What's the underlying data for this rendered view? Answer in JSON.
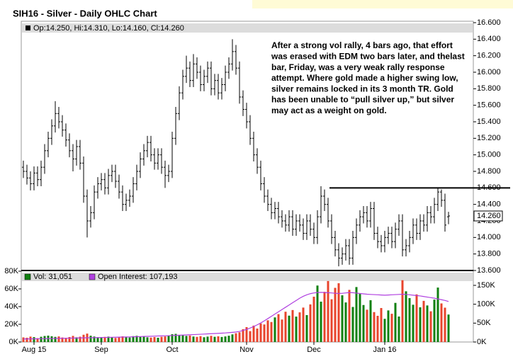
{
  "chart_data": [
    {
      "type": "ohlc",
      "title": "SIH16 - Silver - Daily OHLC Chart",
      "header": "Op:14.250, Hi:14.310, Lo:14.160, Cl:14.260",
      "annotation": [
        "After a strong vol rally, 4 bars ago, that effort",
        "was erased with EDM two bars later, and thelast",
        "bar, Friday, was a very weak rally response",
        "attempt.  Where gold made a higher swing low,",
        "silver remains locked in its 3 month TR.  Gold",
        "has been unable to “pull silver up,” but silver",
        "may act as a weight on gold."
      ],
      "categories": [
        null,
        null,
        null,
        "Aug 15",
        null,
        null,
        null,
        null,
        null,
        null,
        null,
        null,
        null,
        null,
        null,
        null,
        null,
        null,
        null,
        null,
        null,
        null,
        "Sep",
        null,
        null,
        null,
        null,
        null,
        null,
        null,
        null,
        null,
        null,
        null,
        null,
        null,
        null,
        null,
        null,
        null,
        null,
        null,
        "Oct",
        null,
        null,
        null,
        null,
        null,
        null,
        null,
        null,
        null,
        null,
        null,
        null,
        null,
        null,
        null,
        null,
        null,
        null,
        null,
        null,
        "Nov",
        null,
        null,
        null,
        null,
        null,
        null,
        null,
        null,
        null,
        null,
        null,
        null,
        null,
        null,
        null,
        null,
        null,
        null,
        "Dec",
        null,
        null,
        null,
        null,
        null,
        null,
        null,
        null,
        null,
        null,
        null,
        null,
        null,
        null,
        null,
        null,
        null,
        null,
        null,
        "Jan 16",
        null,
        null,
        null,
        null,
        null,
        null,
        null,
        null,
        null,
        null,
        null,
        null,
        null,
        null,
        null,
        null,
        null,
        null
      ],
      "open": [
        14.85,
        14.8,
        14.72,
        14.65,
        14.78,
        14.7,
        14.85,
        15.05,
        15.2,
        15.35,
        15.5,
        15.4,
        15.3,
        15.18,
        15.05,
        14.95,
        15.1,
        14.9,
        14.5,
        14.2,
        14.3,
        14.55,
        14.65,
        14.7,
        14.6,
        14.75,
        14.8,
        14.68,
        14.55,
        14.4,
        14.45,
        14.5,
        14.65,
        14.8,
        14.95,
        15.05,
        15.15,
        15.0,
        14.9,
        15.0,
        14.85,
        14.75,
        14.8,
        15.2,
        15.5,
        15.75,
        15.95,
        16.05,
        15.9,
        16.1,
        16.0,
        15.85,
        15.95,
        16.05,
        15.8,
        15.9,
        15.75,
        15.85,
        16.0,
        16.1,
        16.25,
        16.05,
        15.7,
        15.55,
        15.4,
        15.2,
        15.0,
        14.85,
        14.65,
        14.5,
        14.4,
        14.3,
        14.35,
        14.25,
        14.2,
        14.15,
        14.25,
        14.1,
        14.2,
        14.15,
        14.05,
        14.2,
        14.1,
        14.0,
        14.25,
        14.5,
        14.4,
        14.2,
        14.0,
        13.85,
        13.75,
        13.8,
        13.9,
        13.75,
        14.0,
        14.15,
        14.25,
        14.3,
        14.2,
        14.35,
        14.05,
        13.95,
        13.9,
        14.0,
        14.05,
        13.95,
        14.1,
        14.2,
        13.85,
        13.9,
        14.0,
        14.15,
        14.05,
        14.2,
        14.15,
        14.3,
        14.25,
        14.4,
        14.55,
        14.45,
        14.25
      ],
      "high": [
        14.93,
        14.88,
        14.8,
        14.86,
        14.86,
        14.93,
        15.13,
        15.28,
        15.43,
        15.65,
        15.58,
        15.48,
        15.38,
        15.26,
        15.13,
        15.18,
        15.18,
        14.98,
        14.58,
        14.38,
        14.63,
        14.73,
        14.78,
        14.78,
        14.83,
        14.88,
        14.88,
        14.76,
        14.63,
        14.53,
        14.58,
        14.73,
        14.88,
        15.03,
        15.13,
        15.23,
        15.23,
        15.08,
        15.08,
        15.08,
        14.93,
        14.88,
        15.28,
        15.58,
        15.83,
        16.03,
        16.2,
        16.13,
        16.22,
        16.18,
        16.08,
        16.03,
        16.13,
        16.13,
        15.98,
        15.98,
        15.93,
        16.08,
        16.18,
        16.4,
        16.33,
        16.13,
        15.78,
        15.63,
        15.48,
        15.28,
        15.08,
        14.93,
        14.73,
        14.58,
        14.48,
        14.43,
        14.43,
        14.33,
        14.28,
        14.33,
        14.33,
        14.28,
        14.28,
        14.23,
        14.28,
        14.28,
        14.18,
        14.33,
        14.62,
        14.58,
        14.48,
        14.28,
        14.08,
        13.93,
        13.88,
        13.98,
        13.98,
        14.08,
        14.23,
        14.33,
        14.38,
        14.38,
        14.43,
        14.43,
        14.13,
        14.03,
        14.08,
        14.13,
        14.13,
        14.18,
        14.28,
        14.28,
        13.98,
        14.08,
        14.23,
        14.23,
        14.28,
        14.28,
        14.38,
        14.38,
        14.48,
        14.6,
        14.58,
        14.53,
        14.31
      ],
      "low": [
        14.72,
        14.64,
        14.57,
        14.57,
        14.62,
        14.62,
        14.77,
        14.97,
        15.12,
        15.27,
        15.32,
        15.22,
        15.1,
        14.97,
        14.8,
        14.87,
        14.82,
        14.42,
        14.0,
        14.12,
        14.22,
        14.47,
        14.57,
        14.52,
        14.52,
        14.67,
        14.6,
        14.47,
        14.32,
        14.32,
        14.37,
        14.42,
        14.57,
        14.72,
        14.87,
        14.97,
        14.92,
        14.82,
        14.82,
        14.77,
        14.6,
        14.67,
        14.72,
        15.12,
        15.42,
        15.67,
        15.87,
        15.82,
        15.82,
        15.92,
        15.77,
        15.77,
        15.87,
        15.72,
        15.72,
        15.67,
        15.67,
        15.77,
        15.92,
        16.02,
        15.97,
        15.62,
        15.47,
        15.32,
        15.12,
        14.92,
        14.77,
        14.57,
        14.42,
        14.32,
        14.22,
        14.22,
        14.17,
        14.12,
        14.07,
        14.07,
        14.02,
        14.02,
        14.07,
        13.97,
        13.97,
        14.02,
        13.92,
        13.92,
        14.17,
        14.32,
        14.12,
        13.92,
        13.77,
        13.65,
        13.67,
        13.72,
        13.67,
        13.67,
        13.92,
        14.07,
        14.17,
        14.12,
        14.12,
        13.97,
        13.87,
        13.82,
        13.82,
        13.92,
        13.87,
        13.87,
        14.02,
        13.77,
        13.77,
        13.82,
        13.92,
        13.97,
        13.97,
        14.07,
        14.07,
        14.17,
        14.17,
        14.32,
        14.37,
        14.07,
        14.16
      ],
      "close": [
        14.8,
        14.72,
        14.65,
        14.78,
        14.7,
        14.85,
        15.05,
        15.2,
        15.35,
        15.5,
        15.4,
        15.3,
        15.18,
        15.05,
        14.95,
        15.1,
        14.9,
        14.5,
        14.2,
        14.3,
        14.55,
        14.65,
        14.7,
        14.6,
        14.75,
        14.8,
        14.68,
        14.55,
        14.4,
        14.45,
        14.5,
        14.65,
        14.8,
        14.95,
        15.05,
        15.15,
        15.0,
        14.9,
        15.0,
        14.85,
        14.75,
        14.8,
        15.2,
        15.5,
        15.75,
        15.95,
        16.05,
        15.9,
        16.1,
        16.0,
        15.85,
        15.95,
        16.05,
        15.8,
        15.9,
        15.75,
        15.85,
        16.0,
        16.1,
        16.25,
        16.05,
        15.7,
        15.55,
        15.4,
        15.2,
        15.0,
        14.85,
        14.65,
        14.5,
        14.4,
        14.3,
        14.35,
        14.25,
        14.2,
        14.15,
        14.25,
        14.1,
        14.2,
        14.15,
        14.05,
        14.2,
        14.1,
        14.0,
        14.25,
        14.5,
        14.4,
        14.2,
        14.0,
        13.85,
        13.75,
        13.8,
        13.9,
        13.75,
        14.0,
        14.15,
        14.25,
        14.3,
        14.2,
        14.35,
        14.05,
        13.95,
        13.9,
        14.0,
        14.05,
        13.95,
        14.1,
        14.2,
        13.85,
        13.9,
        14.0,
        14.15,
        14.05,
        14.2,
        14.15,
        14.3,
        14.25,
        14.4,
        14.55,
        14.45,
        14.15,
        14.26
      ],
      "color": "#000000",
      "last_label": "14.260",
      "resistance": 14.6,
      "ylim": [
        13.6,
        16.6
      ],
      "yticks": [
        {
          "value": 13.6,
          "label": "13.600"
        },
        {
          "value": 13.8,
          "label": "13.800"
        },
        {
          "value": 14.0,
          "label": "14.000"
        },
        {
          "value": 14.2,
          "label": "14.200"
        },
        {
          "value": 14.4,
          "label": "14.400"
        },
        {
          "value": 14.6,
          "label": "14.600"
        },
        {
          "value": 14.8,
          "label": "14.800"
        },
        {
          "value": 15.0,
          "label": "15.000"
        },
        {
          "value": 15.2,
          "label": "15.200"
        },
        {
          "value": 15.4,
          "label": "15.400"
        },
        {
          "value": 15.6,
          "label": "15.600"
        },
        {
          "value": 15.8,
          "label": "15.800"
        },
        {
          "value": 16.0,
          "label": "16.000"
        },
        {
          "value": 16.2,
          "label": "16.200"
        },
        {
          "value": 16.4,
          "label": "16.400"
        },
        {
          "value": 16.6,
          "label": "16.600"
        }
      ]
    },
    {
      "type": "bar",
      "series": [
        {
          "name": "Vol: 31,051",
          "color": "#108010",
          "down_color": "#e8442c",
          "values": [
            5200,
            4800,
            6100,
            5500,
            4300,
            5900,
            6800,
            7200,
            6500,
            5800,
            6300,
            5100,
            4700,
            5600,
            6900,
            5300,
            6000,
            8200,
            9500,
            7100,
            6200,
            5400,
            4900,
            5800,
            6100,
            5200,
            4600,
            5700,
            6400,
            5900,
            5100,
            6600,
            7000,
            5800,
            6200,
            5300,
            5000,
            5600,
            4800,
            5900,
            6300,
            6800,
            8800,
            9200,
            7600,
            8100,
            6900,
            7300,
            6200,
            5800,
            6600,
            5400,
            6100,
            7000,
            5900,
            6400,
            5700,
            6300,
            7100,
            8600,
            9900,
            11000,
            14500,
            16800,
            12300,
            18500,
            15200,
            21000,
            19800,
            24500,
            22600,
            27800,
            31500,
            25400,
            34200,
            29800,
            36100,
            28700,
            33500,
            38900,
            30400,
            42500,
            51200,
            63800,
            45600,
            56700,
            68900,
            48300,
            61200,
            66400,
            52800,
            44700,
            58900,
            39600,
            62100,
            54300,
            41800,
            36500,
            47200,
            33800,
            29600,
            38400,
            26200,
            35700,
            31900,
            44200,
            28800,
            69800,
            57300,
            49600,
            42100,
            53800,
            39200,
            46500,
            41300,
            34700,
            47900,
            61500,
            43600,
            38800,
            31051
          ]
        },
        {
          "name": "Open Interest: 107,193",
          "color": "#b040e0",
          "axis": "y2",
          "values": [
            8000,
            8200,
            8300,
            8500,
            8600,
            8800,
            9000,
            9100,
            9300,
            9500,
            9600,
            9800,
            10000,
            10200,
            10400,
            10600,
            10800,
            11000,
            11200,
            11300,
            11500,
            11700,
            11900,
            12100,
            12300,
            12500,
            12700,
            12900,
            13100,
            13300,
            13500,
            13800,
            14100,
            14400,
            14700,
            15000,
            15300,
            15600,
            15900,
            16200,
            16500,
            16800,
            17200,
            17600,
            18000,
            18400,
            18800,
            19200,
            19600,
            20000,
            20500,
            21000,
            21500,
            22000,
            22500,
            23000,
            23500,
            24000,
            24800,
            25600,
            26500,
            28000,
            30500,
            33500,
            37000,
            41000,
            45500,
            50500,
            56000,
            62000,
            68000,
            74000,
            80000,
            86000,
            92000,
            98000,
            104000,
            110000,
            116000,
            121000,
            125000,
            128000,
            130000,
            131000,
            131500,
            131000,
            130500,
            130000,
            129000,
            128500,
            129000,
            130000,
            131000,
            130500,
            129500,
            128500,
            127500,
            126500,
            126000,
            125500,
            125000,
            124500,
            124000,
            124500,
            125000,
            125500,
            126000,
            126500,
            126000,
            125000,
            124000,
            123000,
            122000,
            120500,
            119000,
            117500,
            116000,
            114000,
            112000,
            110000,
            107193
          ]
        }
      ],
      "ylim": [
        0,
        80000
      ],
      "yticks": [
        {
          "value": 0,
          "label": "0K"
        },
        {
          "value": 20000,
          "label": "20K"
        },
        {
          "value": 40000,
          "label": "40K"
        },
        {
          "value": 60000,
          "label": "60K"
        },
        {
          "value": 80000,
          "label": "80K"
        }
      ],
      "y2lim": [
        0,
        187500
      ],
      "y2ticks": [
        {
          "value": 0,
          "label": "0K"
        },
        {
          "value": 50000,
          "label": "50K"
        },
        {
          "value": 100000,
          "label": "100K"
        },
        {
          "value": 150000,
          "label": "150K"
        }
      ]
    }
  ]
}
